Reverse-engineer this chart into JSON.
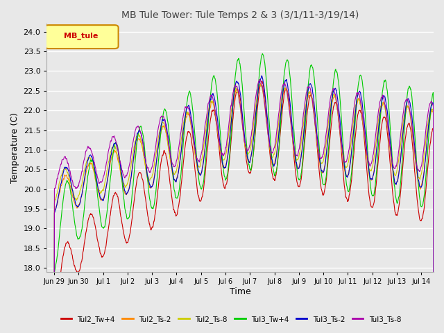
{
  "title": "MB Tule Tower: Tule Temps 2 & 3 (3/1/11-3/19/14)",
  "xlabel": "Time",
  "ylabel": "Temperature (C)",
  "ylim": [
    17.9,
    24.2
  ],
  "background_color": "#e8e8e8",
  "grid_color": "white",
  "tick_labels": [
    "Jun 29",
    "Jun 30",
    "Jul 1",
    "Jul 2",
    "Jul 3",
    "Jul 4",
    "Jul 5",
    "Jul 6",
    "Jul 7",
    "Jul 8",
    "Jul 9",
    "Jul 10",
    "Jul 11",
    "Jul 12",
    "Jul 13",
    "Jul 14"
  ],
  "series": [
    {
      "name": "Tul2_Tw+4",
      "color": "#cc0000"
    },
    {
      "name": "Tul2_Ts-2",
      "color": "#ff8800"
    },
    {
      "name": "Tul2_Ts-8",
      "color": "#cccc00"
    },
    {
      "name": "Tul3_Tw+4",
      "color": "#00cc00"
    },
    {
      "name": "Tul3_Ts-2",
      "color": "#0000cc"
    },
    {
      "name": "Tul3_Ts-8",
      "color": "#aa00aa"
    }
  ],
  "legend_label": "MB_tule",
  "legend_text_color": "#cc0000",
  "legend_border_color": "#cc8800"
}
